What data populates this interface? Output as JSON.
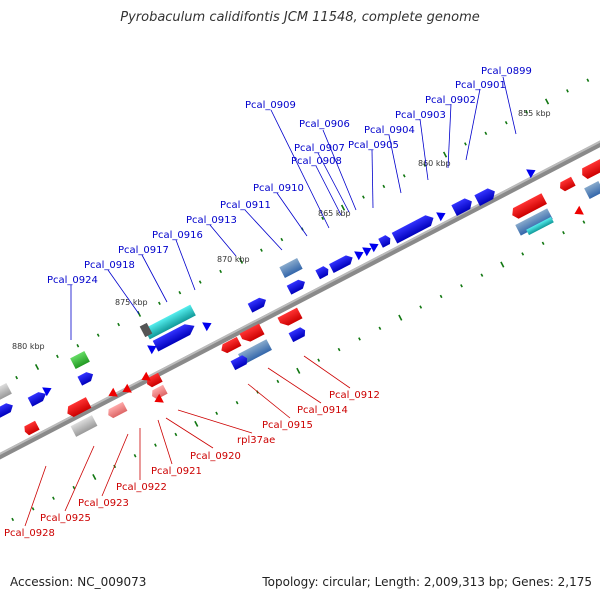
{
  "title": "Pyrobaculum calidifontis JCM 11548, complete genome",
  "footer": {
    "accession": "Accession: NC_009073",
    "summary": "Topology: circular; Length: 2,009,313 bp; Genes: 2,175"
  },
  "colors": {
    "forward_gene": "#0000ee",
    "reverse_gene": "#ee0000",
    "rna_gene": "#22cccc",
    "other_gene": "#33bb33",
    "backbone": "#888888",
    "tick_mark": "#117711",
    "forward_label": "#0000cc",
    "reverse_label": "#cc0000"
  },
  "ticks": [
    "880 kbp",
    "875 kbp",
    "870 kbp",
    "865 kbp",
    "860 kbp",
    "855 kbp"
  ],
  "forward_labels": [
    "Pcal_0899",
    "Pcal_0901",
    "Pcal_0902",
    "Pcal_0903",
    "Pcal_0904",
    "Pcal_0905",
    "Pcal_0906",
    "Pcal_0907",
    "Pcal_0908",
    "Pcal_0909",
    "Pcal_0910",
    "Pcal_0911",
    "Pcal_0913",
    "Pcal_0916",
    "Pcal_0917",
    "Pcal_0918",
    "Pcal_0924"
  ],
  "reverse_labels": [
    "Pcal_0912",
    "Pcal_0914",
    "Pcal_0915",
    "rpl37ae",
    "Pcal_0920",
    "Pcal_0921",
    "Pcal_0922",
    "Pcal_0923",
    "Pcal_0925",
    "Pcal_0928"
  ]
}
